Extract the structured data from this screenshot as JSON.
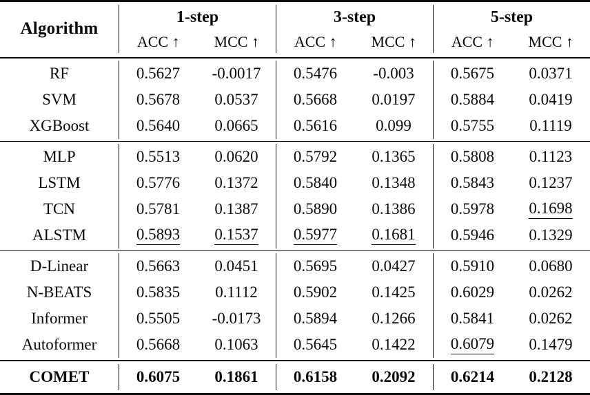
{
  "colors": {
    "rule": "#0a0a0a",
    "background": "#ffffff",
    "text": "#0a0a0a"
  },
  "table": {
    "header": {
      "algorithm": "Algorithm",
      "groups": [
        {
          "label": "1-step",
          "acc": "ACC ↑",
          "mcc": "MCC ↑"
        },
        {
          "label": "3-step",
          "acc": "ACC ↑",
          "mcc": "MCC ↑"
        },
        {
          "label": "5-step",
          "acc": "ACC ↑",
          "mcc": "MCC ↑"
        }
      ]
    },
    "sections": [
      {
        "rows": [
          {
            "name": "RF",
            "values": [
              "0.5627",
              "-0.0017",
              "0.5476",
              "-0.003",
              "0.5675",
              "0.0371"
            ]
          },
          {
            "name": "SVM",
            "values": [
              "0.5678",
              "0.0537",
              "0.5668",
              "0.0197",
              "0.5884",
              "0.0419"
            ]
          },
          {
            "name": "XGBoost",
            "values": [
              "0.5640",
              "0.0665",
              "0.5616",
              "0.099",
              "0.5755",
              "0.1119"
            ]
          }
        ]
      },
      {
        "rows": [
          {
            "name": "MLP",
            "values": [
              "0.5513",
              "0.0620",
              "0.5792",
              "0.1365",
              "0.5808",
              "0.1123"
            ]
          },
          {
            "name": "LSTM",
            "values": [
              "0.5776",
              "0.1372",
              "0.5840",
              "0.1348",
              "0.5843",
              "0.1237"
            ]
          },
          {
            "name": "TCN",
            "values": [
              "0.5781",
              "0.1387",
              "0.5890",
              "0.1386",
              "0.5978",
              "0.1698"
            ]
          },
          {
            "name": "ALSTM",
            "values": [
              "0.5893",
              "0.1537",
              "0.5977",
              "0.1681",
              "0.5946",
              "0.1329"
            ]
          }
        ]
      },
      {
        "rows": [
          {
            "name": "D-Linear",
            "values": [
              "0.5663",
              "0.0451",
              "0.5695",
              "0.0427",
              "0.5910",
              "0.0680"
            ]
          },
          {
            "name": "N-BEATS",
            "values": [
              "0.5835",
              "0.1112",
              "0.5902",
              "0.1425",
              "0.6029",
              "0.0262"
            ]
          },
          {
            "name": "Informer",
            "values": [
              "0.5505",
              "-0.0173",
              "0.5894",
              "0.1266",
              "0.5841",
              "0.0262"
            ]
          },
          {
            "name": "Autoformer",
            "values": [
              "0.5668",
              "0.1063",
              "0.5645",
              "0.1422",
              "0.6079",
              "0.1479"
            ]
          }
        ]
      }
    ],
    "final_row": {
      "name": "COMET",
      "values": [
        "0.6075",
        "0.1861",
        "0.6158",
        "0.2092",
        "0.6214",
        "0.2128"
      ]
    },
    "underlined": [
      "table.sections.1.rows.2.values.5",
      "table.sections.1.rows.3.values.0",
      "table.sections.1.rows.3.values.1",
      "table.sections.1.rows.3.values.2",
      "table.sections.1.rows.3.values.3",
      "table.sections.2.rows.3.values.4"
    ]
  }
}
